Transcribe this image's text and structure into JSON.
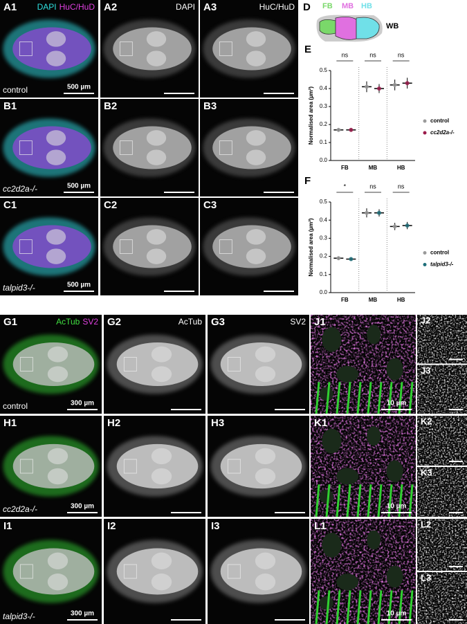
{
  "images": [
    {
      "label": "A1",
      "channels": [
        {
          "text": "DAPI",
          "color": "#2fe0e0"
        },
        {
          "text": "HuC/HuD",
          "color": "#e040e0"
        }
      ],
      "caption": "control",
      "scale": "500 µm"
    },
    {
      "label": "A2",
      "channels": [
        {
          "text": "DAPI",
          "color": "#ffffff"
        }
      ]
    },
    {
      "label": "A3",
      "channels": [
        {
          "text": "HuC/HuD",
          "color": "#ffffff"
        }
      ]
    },
    {
      "label": "B1",
      "caption": "cc2d2a-/-",
      "scale": "500 µm"
    },
    {
      "label": "B2"
    },
    {
      "label": "B3"
    },
    {
      "label": "C1",
      "caption": "talpid3-/-",
      "scale": "500 µm"
    },
    {
      "label": "C2"
    },
    {
      "label": "C3"
    },
    {
      "label": "G1",
      "channels": [
        {
          "text": "AcTub",
          "color": "#40e040"
        },
        {
          "text": "SV2",
          "color": "#e040e0"
        }
      ],
      "caption": "control",
      "scale": "300 µm"
    },
    {
      "label": "G2",
      "channels": [
        {
          "text": "AcTub",
          "color": "#ffffff"
        }
      ]
    },
    {
      "label": "G3",
      "channels": [
        {
          "text": "SV2",
          "color": "#ffffff"
        }
      ]
    },
    {
      "label": "J1",
      "scale": "10 µm"
    },
    {
      "label": "J2"
    },
    {
      "label": "J3"
    },
    {
      "label": "H1",
      "caption": "cc2d2a-/-",
      "scale": "300 µm"
    },
    {
      "label": "H2"
    },
    {
      "label": "H3"
    },
    {
      "label": "K1",
      "scale": "10 µm"
    },
    {
      "label": "K2"
    },
    {
      "label": "K3"
    },
    {
      "label": "I1",
      "caption": "talpid3-/-",
      "scale": "300 µm"
    },
    {
      "label": "I2"
    },
    {
      "label": "I3"
    },
    {
      "label": "L1",
      "scale": "10 µm"
    },
    {
      "label": "L2"
    },
    {
      "label": "L3"
    }
  ],
  "diagram": {
    "label": "D",
    "regions": [
      {
        "name": "FB",
        "color": "#7ad86a"
      },
      {
        "name": "MB",
        "color": "#e070e0"
      },
      {
        "name": "HB",
        "color": "#70e0e8"
      }
    ],
    "whole": "WB"
  },
  "chart_data": [
    {
      "type": "dot",
      "label": "E",
      "ylabel": "Normalised area (µm²)",
      "categories": [
        "FB",
        "MB",
        "HB"
      ],
      "significance": [
        "ns",
        "ns",
        "ns"
      ],
      "series": [
        {
          "name": "control",
          "color": "#9a9a9a",
          "values": [
            0.17,
            0.41,
            0.42
          ],
          "errors": [
            0.01,
            0.03,
            0.03
          ]
        },
        {
          "name": "cc2d2a-/-",
          "color": "#9b1b4b",
          "values": [
            0.17,
            0.4,
            0.43
          ],
          "errors": [
            0.01,
            0.025,
            0.03
          ]
        }
      ],
      "ylim": [
        0,
        0.5
      ],
      "yticks": [
        {
          "value": 0,
          "label": "0.0"
        },
        0.1,
        0.2,
        0.3,
        0.4,
        0.5
      ]
    },
    {
      "type": "dot",
      "label": "F",
      "ylabel": "Normalised area (µm²)",
      "categories": [
        "FB",
        "MB",
        "HB"
      ],
      "significance": [
        "*",
        "ns",
        "ns"
      ],
      "series": [
        {
          "name": "control",
          "color": "#9a9a9a",
          "values": [
            0.19,
            0.44,
            0.365
          ],
          "errors": [
            0.01,
            0.025,
            0.02
          ]
        },
        {
          "name": "talpid3-/-",
          "color": "#1f6f7a",
          "values": [
            0.185,
            0.44,
            0.37
          ],
          "errors": [
            0.008,
            0.02,
            0.02
          ]
        }
      ],
      "ylim": [
        0,
        0.5
      ],
      "yticks": [
        {
          "value": 0,
          "label": "0.0"
        },
        0.1,
        0.2,
        0.3,
        0.4,
        0.5
      ]
    }
  ]
}
